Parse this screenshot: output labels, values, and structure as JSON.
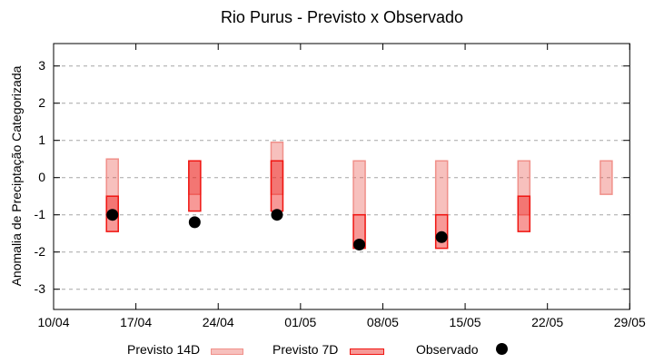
{
  "title": "Rio Purus - Previsto x Observado",
  "ylabel": "Anomalia de Preciptação Categorizada",
  "legend": {
    "previsto14_label": "Previsto 14D",
    "previsto7_label": "Previsto 7D",
    "observado_label": "Observado"
  },
  "colors": {
    "previsto14_fill": "rgba(232,64,54,0.33)",
    "previsto14_border": "#f0908a",
    "previsto7_fill": "rgba(237,28,25,0.45)",
    "previsto7_border": "#f01511",
    "observado": "#000000",
    "grid": "#a6a6a6",
    "axis": "#000000"
  },
  "chart_data": {
    "type": "bar",
    "subtype": "vertical range bars (forecast anomaly category ranges) with observed scatter dots",
    "title": "Rio Purus - Previsto x Observado",
    "xlabel": "",
    "ylabel": "Anomalia de Preciptação Categorizada",
    "ylim": [
      -3.55,
      3.6
    ],
    "yticks": [
      3,
      2,
      1,
      0,
      -1,
      -2,
      -3
    ],
    "xtick_labels": [
      "10/04",
      "17/04",
      "24/04",
      "01/05",
      "08/05",
      "15/05",
      "22/05",
      "29/05"
    ],
    "xtick_days": [
      0,
      7,
      14,
      21,
      28,
      35,
      42,
      49
    ],
    "grid": "horizontal dashed gridlines only",
    "legend_position": "bottom",
    "categories": [
      "15/04",
      "22/04",
      "29/04",
      "06/05",
      "13/05",
      "20/05",
      "27/05"
    ],
    "bar_days": [
      5,
      12,
      19,
      26,
      33,
      40,
      47
    ],
    "series": [
      {
        "name": "Previsto 14D",
        "kind": "range",
        "ranges": [
          [
            0.5,
            -1.0
          ],
          [
            0.45,
            -0.45
          ],
          [
            0.95,
            -0.45
          ],
          [
            0.45,
            -1.0
          ],
          [
            0.45,
            -1.0
          ],
          [
            0.45,
            -1.0
          ],
          [
            0.45,
            -0.45
          ]
        ]
      },
      {
        "name": "Previsto 7D",
        "kind": "range",
        "ranges": [
          [
            -0.5,
            -1.45
          ],
          [
            0.45,
            -0.9
          ],
          [
            0.45,
            -0.9
          ],
          [
            -1.0,
            -1.9
          ],
          [
            -1.0,
            -1.9
          ],
          [
            -0.5,
            -1.45
          ],
          null
        ]
      },
      {
        "name": "Observado",
        "kind": "scatter",
        "values": [
          -1.0,
          -1.2,
          -1.0,
          -1.8,
          -1.6,
          null,
          null
        ]
      }
    ]
  }
}
